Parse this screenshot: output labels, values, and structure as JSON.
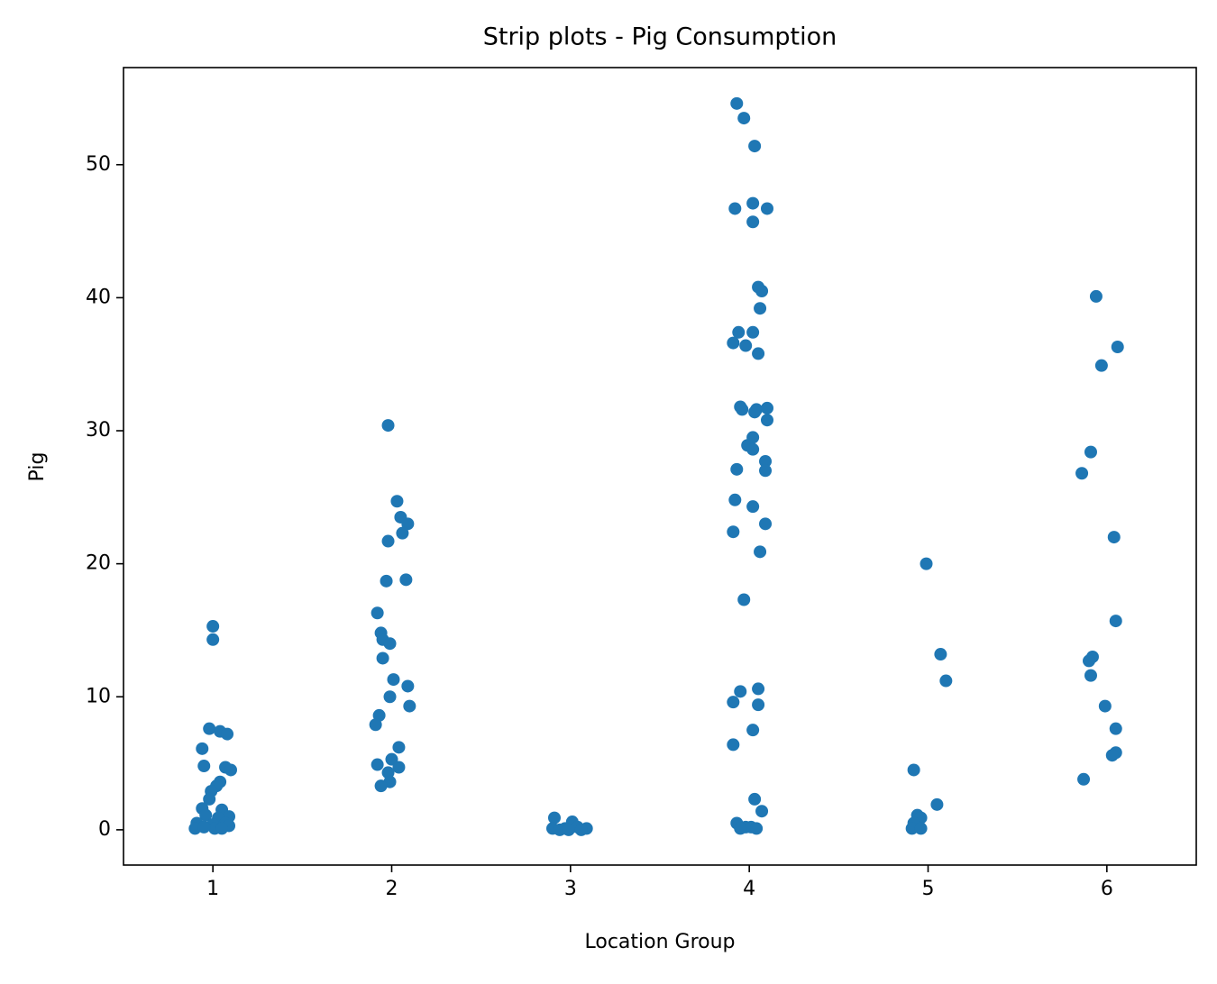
{
  "chart_data": {
    "type": "scatter",
    "title": "Strip plots - Pig Consumption",
    "x_label": "Location Group",
    "y_label": "Pig",
    "color": "#1f77b4",
    "x": [
      1.0,
      1.0,
      0.98,
      1.04,
      1.08,
      0.94,
      0.95,
      1.07,
      1.1,
      1.04,
      1.02,
      0.99,
      0.98,
      0.94,
      1.05,
      1.09,
      0.96,
      1.03,
      0.91,
      1.07,
      1.0,
      1.09,
      0.9,
      1.01,
      0.95,
      1.05,
      1.98,
      2.03,
      2.05,
      2.09,
      2.06,
      1.98,
      1.97,
      2.08,
      1.92,
      1.94,
      1.95,
      1.99,
      1.95,
      2.01,
      2.09,
      1.99,
      2.1,
      1.93,
      1.91,
      2.04,
      2.0,
      1.92,
      2.04,
      1.98,
      1.99,
      1.94,
      2.91,
      3.01,
      2.9,
      2.97,
      3.04,
      3.09,
      2.94,
      3.06,
      2.99,
      3.93,
      3.97,
      4.03,
      4.02,
      3.92,
      4.1,
      4.02,
      4.05,
      4.07,
      4.06,
      3.94,
      4.02,
      3.91,
      3.98,
      4.05,
      3.95,
      3.96,
      4.04,
      4.1,
      4.03,
      4.1,
      4.02,
      3.99,
      4.02,
      4.09,
      3.93,
      4.09,
      3.92,
      4.02,
      4.09,
      3.91,
      4.06,
      3.97,
      4.05,
      3.95,
      3.91,
      4.05,
      4.02,
      3.91,
      4.03,
      4.07,
      3.93,
      3.98,
      4.01,
      4.04,
      3.95,
      4.99,
      5.07,
      5.1,
      4.92,
      5.05,
      4.94,
      4.96,
      4.92,
      4.91,
      4.96,
      5.94,
      6.06,
      5.97,
      5.91,
      5.86,
      6.04,
      6.05,
      5.92,
      5.9,
      5.91,
      5.99,
      6.05,
      6.05,
      6.03,
      5.87
    ],
    "values": [
      15.3,
      14.3,
      7.6,
      7.4,
      7.2,
      6.1,
      4.8,
      4.7,
      4.5,
      3.6,
      3.3,
      2.9,
      2.3,
      1.6,
      1.5,
      1.0,
      1.1,
      0.9,
      0.5,
      0.5,
      0.4,
      0.3,
      0.1,
      0.1,
      0.2,
      0.1,
      30.4,
      24.7,
      23.5,
      23.0,
      22.3,
      21.7,
      18.7,
      18.8,
      16.3,
      14.8,
      14.3,
      14.0,
      12.9,
      11.3,
      10.8,
      10.0,
      9.3,
      8.6,
      7.9,
      6.2,
      5.3,
      4.9,
      4.7,
      4.3,
      3.6,
      3.3,
      0.9,
      0.6,
      0.1,
      0.1,
      0.2,
      0.1,
      0.0,
      0.0,
      0.0,
      54.6,
      53.5,
      51.4,
      47.1,
      46.7,
      46.7,
      45.7,
      40.8,
      40.5,
      39.2,
      37.4,
      37.4,
      36.6,
      36.4,
      35.8,
      31.8,
      31.6,
      31.6,
      31.7,
      31.4,
      30.8,
      29.5,
      28.9,
      28.6,
      27.7,
      27.1,
      27.0,
      24.8,
      24.3,
      23.0,
      22.4,
      20.9,
      17.3,
      10.6,
      10.4,
      9.6,
      9.4,
      7.5,
      6.4,
      2.3,
      1.4,
      0.5,
      0.2,
      0.2,
      0.1,
      0.1,
      20.0,
      13.2,
      11.2,
      4.5,
      1.9,
      1.1,
      0.9,
      0.5,
      0.1,
      0.1,
      40.1,
      36.3,
      34.9,
      28.4,
      26.8,
      22.0,
      15.7,
      13.0,
      12.7,
      11.6,
      9.3,
      7.6,
      5.8,
      5.6,
      3.8
    ],
    "xlim": [
      0.5,
      6.5
    ],
    "xticks": [
      1,
      2,
      3,
      4,
      5,
      6
    ],
    "ylim": [
      -2.65,
      57.3
    ],
    "yticks": [
      0,
      10,
      20,
      30,
      40,
      50
    ],
    "grid": false
  }
}
